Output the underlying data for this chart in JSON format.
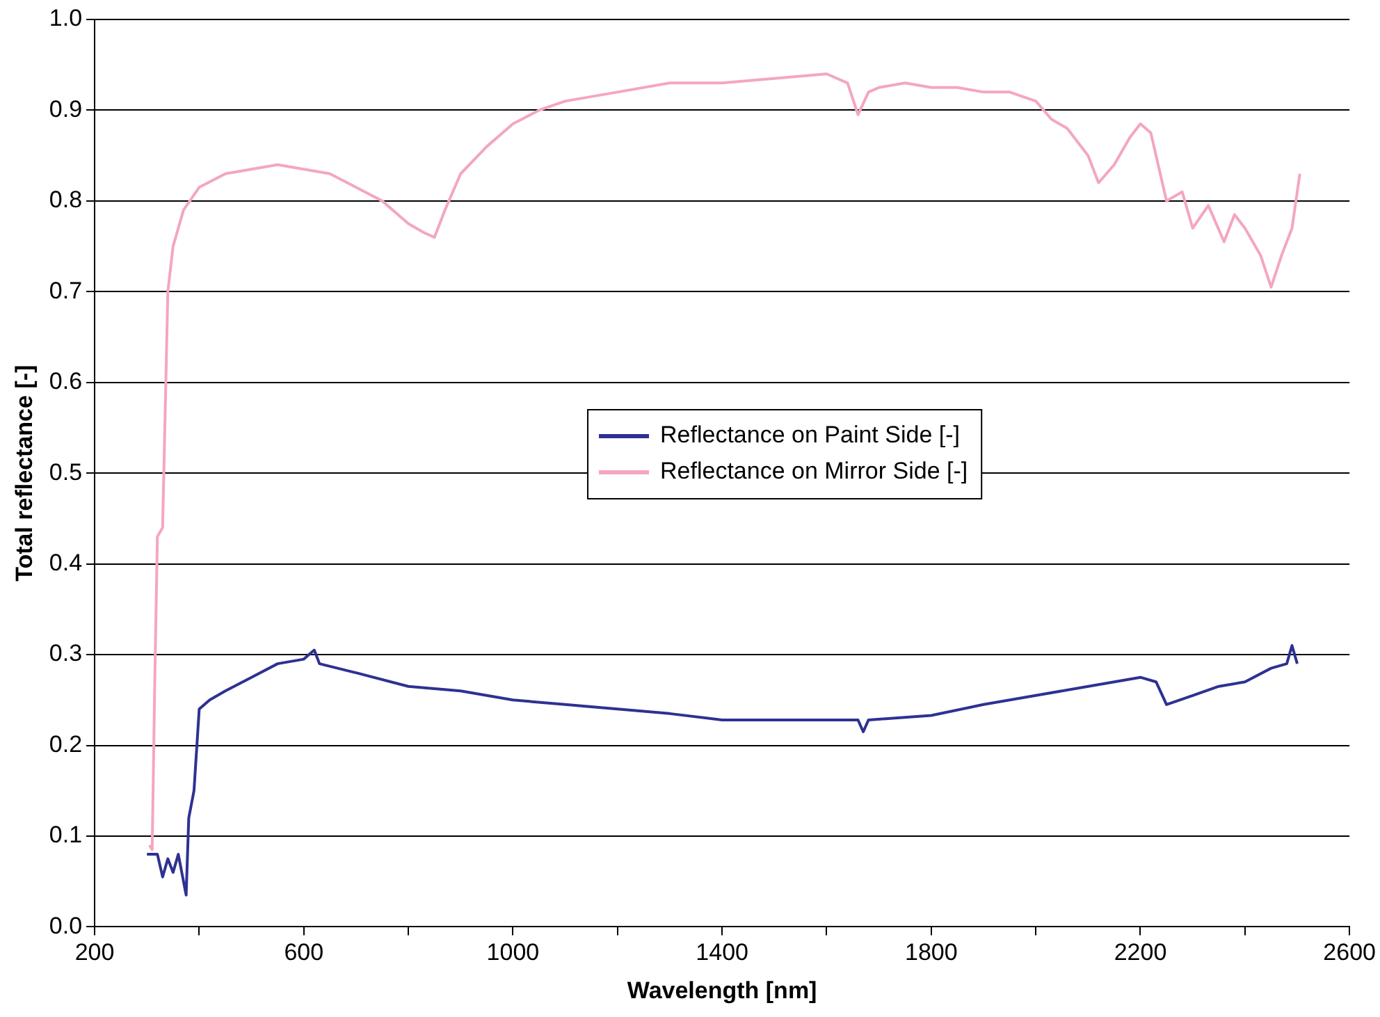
{
  "chart_data": {
    "type": "line",
    "xlabel": "Wavelength [nm]",
    "ylabel": "Total reflectance [-]",
    "xlim": [
      200,
      2600
    ],
    "xticks": [
      200,
      {
        "value": 400,
        "label": null
      },
      600,
      {
        "value": 800,
        "label": null
      },
      1000,
      {
        "value": 1200,
        "label": null
      },
      1400,
      {
        "value": 1600,
        "label": null
      },
      1800,
      {
        "value": 2000,
        "label": null
      },
      2200,
      {
        "value": 2400,
        "label": null
      },
      2600
    ],
    "ylim": [
      0,
      1
    ],
    "yticks": [
      {
        "value": 0,
        "label": "0.0"
      },
      0.1,
      0.2,
      0.3,
      0.4,
      0.5,
      0.6,
      0.7,
      0.8,
      0.9,
      {
        "value": 1,
        "label": "1.0"
      }
    ],
    "grid": "y",
    "legend": "center",
    "marker": "none",
    "line_style": "solid",
    "series": [
      {
        "name": "Reflectance on Paint Side [-]",
        "color": "#2e3192",
        "x": [
          300,
          320,
          330,
          340,
          350,
          360,
          370,
          375,
          380,
          390,
          400,
          420,
          450,
          500,
          550,
          600,
          620,
          630,
          700,
          800,
          900,
          1000,
          1100,
          1200,
          1300,
          1400,
          1500,
          1600,
          1660,
          1670,
          1680,
          1800,
          1900,
          2000,
          2100,
          2200,
          2230,
          2250,
          2300,
          2350,
          2400,
          2450,
          2480,
          2490,
          2500
        ],
        "values": [
          0.08,
          0.08,
          0.055,
          0.075,
          0.06,
          0.08,
          0.05,
          0.035,
          0.12,
          0.15,
          0.24,
          0.25,
          0.26,
          0.275,
          0.29,
          0.295,
          0.305,
          0.29,
          0.28,
          0.265,
          0.26,
          0.25,
          0.245,
          0.24,
          0.235,
          0.228,
          0.228,
          0.228,
          0.228,
          0.215,
          0.228,
          0.233,
          0.245,
          0.255,
          0.265,
          0.275,
          0.27,
          0.245,
          0.255,
          0.265,
          0.27,
          0.285,
          0.29,
          0.31,
          0.29
        ]
      },
      {
        "name": "Reflectance on Mirror Side [-]",
        "color": "#f4a6c0",
        "x": [
          305,
          310,
          315,
          320,
          330,
          340,
          350,
          370,
          400,
          450,
          500,
          550,
          600,
          650,
          700,
          750,
          800,
          830,
          850,
          870,
          900,
          950,
          1000,
          1050,
          1100,
          1200,
          1300,
          1400,
          1500,
          1600,
          1640,
          1660,
          1680,
          1700,
          1750,
          1800,
          1850,
          1900,
          1950,
          2000,
          2030,
          2060,
          2100,
          2120,
          2150,
          2180,
          2200,
          2220,
          2250,
          2280,
          2300,
          2330,
          2360,
          2380,
          2400,
          2430,
          2450,
          2470,
          2490,
          2505
        ],
        "values": [
          0.09,
          0.085,
          0.27,
          0.43,
          0.44,
          0.7,
          0.75,
          0.79,
          0.815,
          0.83,
          0.835,
          0.84,
          0.835,
          0.83,
          0.815,
          0.8,
          0.775,
          0.765,
          0.76,
          0.79,
          0.83,
          0.86,
          0.885,
          0.9,
          0.91,
          0.92,
          0.93,
          0.93,
          0.935,
          0.94,
          0.93,
          0.895,
          0.92,
          0.925,
          0.93,
          0.925,
          0.925,
          0.92,
          0.92,
          0.91,
          0.89,
          0.88,
          0.85,
          0.82,
          0.84,
          0.87,
          0.885,
          0.875,
          0.8,
          0.81,
          0.77,
          0.795,
          0.755,
          0.785,
          0.77,
          0.74,
          0.705,
          0.74,
          0.77,
          0.83
        ]
      }
    ]
  }
}
